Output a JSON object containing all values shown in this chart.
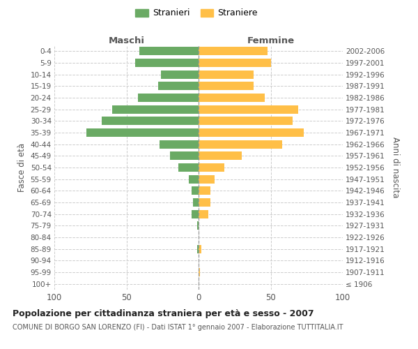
{
  "age_groups": [
    "100+",
    "95-99",
    "90-94",
    "85-89",
    "80-84",
    "75-79",
    "70-74",
    "65-69",
    "60-64",
    "55-59",
    "50-54",
    "45-49",
    "40-44",
    "35-39",
    "30-34",
    "25-29",
    "20-24",
    "15-19",
    "10-14",
    "5-9",
    "0-4"
  ],
  "birth_years": [
    "≤ 1906",
    "1907-1911",
    "1912-1916",
    "1917-1921",
    "1922-1926",
    "1927-1931",
    "1932-1936",
    "1937-1941",
    "1942-1946",
    "1947-1951",
    "1952-1956",
    "1957-1961",
    "1962-1966",
    "1967-1971",
    "1972-1976",
    "1977-1981",
    "1982-1986",
    "1987-1991",
    "1992-1996",
    "1997-2001",
    "2002-2006"
  ],
  "maschi": [
    0,
    0,
    0,
    1,
    0,
    1,
    5,
    4,
    5,
    7,
    14,
    20,
    27,
    78,
    67,
    60,
    42,
    28,
    26,
    44,
    41
  ],
  "femmine": [
    0,
    1,
    0,
    2,
    0,
    0,
    7,
    8,
    8,
    11,
    18,
    30,
    58,
    73,
    65,
    69,
    46,
    38,
    38,
    50,
    48
  ],
  "maschi_color": "#6aaa64",
  "femmine_color": "#ffbf47",
  "grid_color": "#cccccc",
  "title": "Popolazione per cittadinanza straniera per età e sesso - 2007",
  "subtitle": "COMUNE DI BORGO SAN LORENZO (FI) - Dati ISTAT 1° gennaio 2007 - Elaborazione TUTTITALIA.IT",
  "xlabel_left": "Maschi",
  "xlabel_right": "Femmine",
  "ylabel_left": "Fasce di età",
  "ylabel_right": "Anni di nascita",
  "xlim": 100,
  "legend_stranieri": "Stranieri",
  "legend_straniere": "Straniere"
}
